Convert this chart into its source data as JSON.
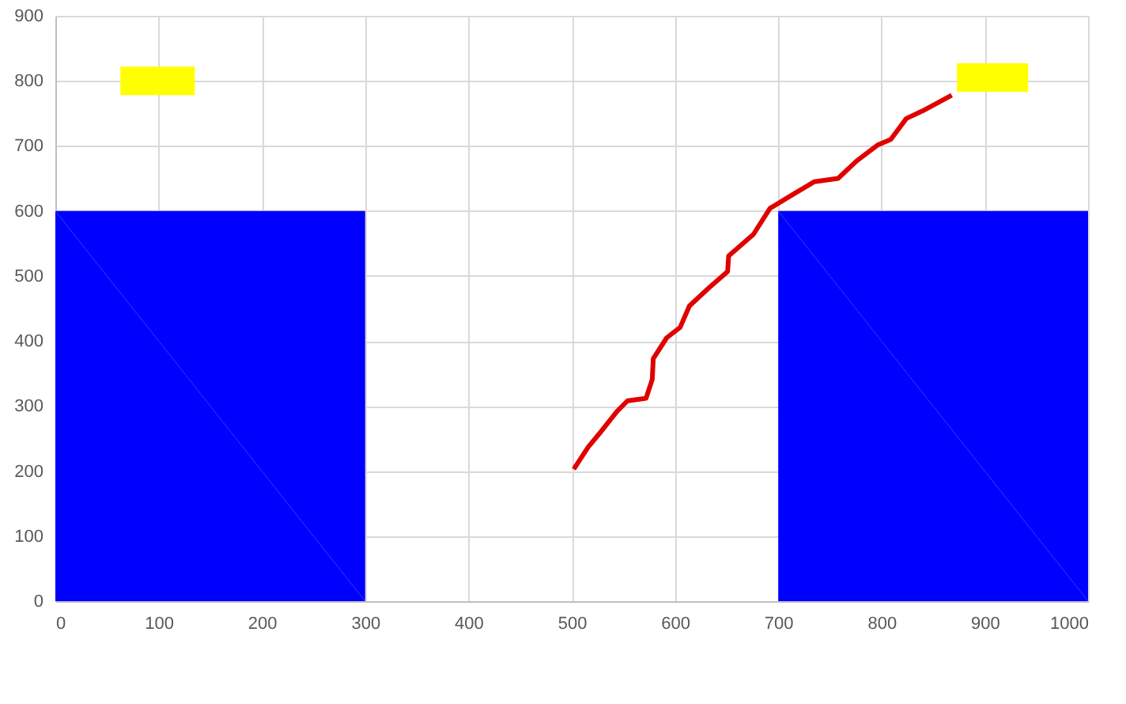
{
  "chart_data": {
    "type": "line",
    "xlim": [
      0,
      1000
    ],
    "ylim": [
      0,
      900
    ],
    "xticks": [
      0,
      100,
      200,
      300,
      400,
      500,
      600,
      700,
      800,
      900,
      1000
    ],
    "yticks": [
      0,
      100,
      200,
      300,
      400,
      500,
      600,
      700,
      800,
      900
    ],
    "grid": true,
    "series": [
      {
        "type": "area",
        "color": "#0000ff",
        "x": [
          0,
          300
        ],
        "values": [
          600,
          600
        ]
      },
      {
        "type": "area",
        "color": "#0000ff",
        "x": [
          700,
          1000
        ],
        "values": [
          600,
          600
        ]
      },
      {
        "type": "line",
        "color": "#ffff00",
        "x": [
          63,
          135
        ],
        "values": [
          800,
          800
        ]
      },
      {
        "type": "line",
        "color": "#ffff00",
        "x": [
          873,
          942
        ],
        "values": [
          805,
          805
        ]
      },
      {
        "color": "#e00000",
        "x": [
          502,
          516,
          528,
          544,
          554,
          572,
          578,
          579,
          592,
          605,
          614,
          633,
          651,
          652,
          676,
          692,
          717,
          735,
          758,
          776,
          796,
          809,
          824,
          840,
          868
        ],
        "values": [
          203,
          237,
          260,
          292,
          308,
          312,
          341,
          373,
          405,
          421,
          454,
          482,
          507,
          531,
          564,
          604,
          628,
          645,
          650,
          677,
          701,
          710,
          742,
          754,
          778
        ]
      }
    ]
  }
}
